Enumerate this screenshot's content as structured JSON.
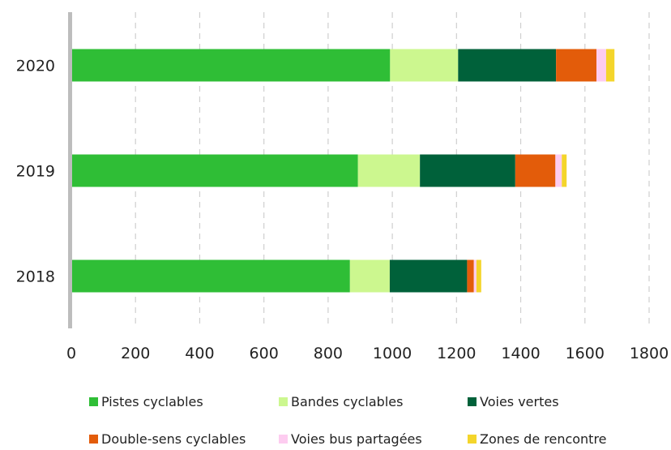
{
  "chart_data": {
    "type": "bar",
    "orientation": "horizontal",
    "stacked": true,
    "categories": [
      "2020",
      "2019",
      "2018"
    ],
    "series": [
      {
        "name": "Pistes cyclables",
        "color": "#2fbe36",
        "values": [
          993,
          893,
          868
        ]
      },
      {
        "name": "Bandes cyclables",
        "color": "#ccf78f",
        "values": [
          212,
          193,
          124
        ]
      },
      {
        "name": "Voies vertes",
        "color": "#00613a",
        "values": [
          305,
          297,
          241
        ]
      },
      {
        "name": "Double-sens cyclables",
        "color": "#e35c0a",
        "values": [
          126,
          125,
          21
        ]
      },
      {
        "name": "Voies bus partagées",
        "color": "#fdccf0",
        "values": [
          30,
          20,
          8
        ]
      },
      {
        "name": "Zones de rencontre",
        "color": "#f4d52b",
        "values": [
          26,
          15,
          15
        ]
      }
    ],
    "xlim": [
      0,
      1800
    ],
    "xticks": [
      "0",
      "200",
      "400",
      "600",
      "800",
      "1000",
      "1200",
      "1400",
      "1600",
      "1800"
    ],
    "grid": "vertical-dashed",
    "legend": "bottom"
  }
}
